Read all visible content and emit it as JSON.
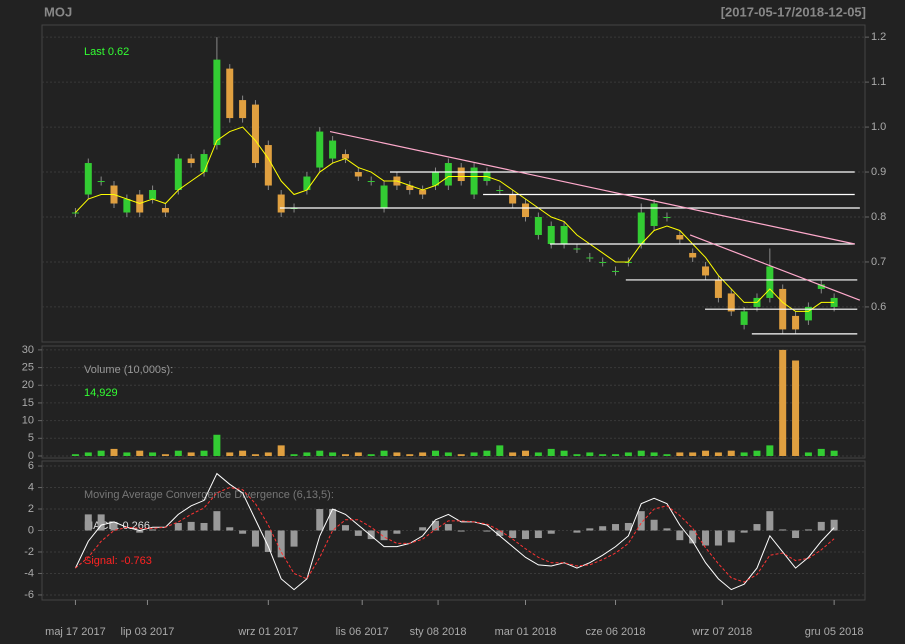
{
  "chart_data": [
    {
      "type": "candlestick",
      "title": "MOJ",
      "subtitle": "[2017-05-17/2018-12-05]",
      "annotation": "Last 0.62",
      "open": [
        0.81,
        0.85,
        0.88,
        0.87,
        0.81,
        0.85,
        0.84,
        0.82,
        0.86,
        0.93,
        0.9,
        0.96,
        1.13,
        1.06,
        1.05,
        0.96,
        0.85,
        0.82,
        0.86,
        0.91,
        0.93,
        0.94,
        0.9,
        0.88,
        0.82,
        0.89,
        0.87,
        0.86,
        0.87,
        0.87,
        0.91,
        0.85,
        0.88,
        0.86,
        0.85,
        0.83,
        0.76,
        0.74,
        0.74,
        0.73,
        0.71,
        0.7,
        0.68,
        0.7,
        0.74,
        0.78,
        0.8,
        0.76,
        0.72,
        0.69,
        0.66,
        0.63,
        0.56,
        0.6,
        0.62,
        0.64,
        0.58,
        0.57,
        0.64,
        0.6
      ],
      "high": [
        0.82,
        0.93,
        0.89,
        0.88,
        0.85,
        0.86,
        0.87,
        0.83,
        0.94,
        0.94,
        0.95,
        1.2,
        1.14,
        1.07,
        1.06,
        0.97,
        0.86,
        0.83,
        0.9,
        1.0,
        0.98,
        0.95,
        0.91,
        0.89,
        0.88,
        0.9,
        0.88,
        0.87,
        0.91,
        0.93,
        0.92,
        0.92,
        0.91,
        0.87,
        0.86,
        0.84,
        0.81,
        0.79,
        0.79,
        0.74,
        0.72,
        0.71,
        0.69,
        0.71,
        0.83,
        0.84,
        0.81,
        0.77,
        0.73,
        0.7,
        0.67,
        0.64,
        0.6,
        0.63,
        0.73,
        0.65,
        0.59,
        0.61,
        0.66,
        0.63
      ],
      "low": [
        0.8,
        0.84,
        0.87,
        0.82,
        0.8,
        0.8,
        0.83,
        0.8,
        0.85,
        0.91,
        0.89,
        0.95,
        1.01,
        1.01,
        0.91,
        0.86,
        0.8,
        0.81,
        0.85,
        0.9,
        0.92,
        0.92,
        0.88,
        0.87,
        0.81,
        0.86,
        0.85,
        0.84,
        0.86,
        0.86,
        0.87,
        0.84,
        0.87,
        0.85,
        0.82,
        0.79,
        0.75,
        0.73,
        0.73,
        0.72,
        0.7,
        0.69,
        0.67,
        0.69,
        0.73,
        0.77,
        0.79,
        0.74,
        0.7,
        0.66,
        0.61,
        0.58,
        0.55,
        0.59,
        0.61,
        0.54,
        0.54,
        0.56,
        0.63,
        0.59
      ],
      "close": [
        0.81,
        0.92,
        0.88,
        0.83,
        0.84,
        0.81,
        0.86,
        0.81,
        0.93,
        0.92,
        0.94,
        1.15,
        1.02,
        1.02,
        0.92,
        0.87,
        0.81,
        0.82,
        0.89,
        0.99,
        0.97,
        0.93,
        0.89,
        0.88,
        0.87,
        0.87,
        0.86,
        0.85,
        0.9,
        0.92,
        0.88,
        0.91,
        0.9,
        0.86,
        0.83,
        0.8,
        0.8,
        0.78,
        0.78,
        0.73,
        0.71,
        0.7,
        0.68,
        0.7,
        0.81,
        0.83,
        0.8,
        0.75,
        0.71,
        0.67,
        0.62,
        0.59,
        0.59,
        0.62,
        0.69,
        0.55,
        0.55,
        0.6,
        0.65,
        0.62
      ],
      "up_color": "#33cc33",
      "down_color": "#e0a040",
      "ma": {
        "color": "#ffff00",
        "values": [
          0.81,
          0.84,
          0.85,
          0.85,
          0.84,
          0.83,
          0.84,
          0.83,
          0.86,
          0.88,
          0.9,
          0.97,
          0.99,
          1.0,
          0.97,
          0.93,
          0.88,
          0.85,
          0.86,
          0.9,
          0.92,
          0.93,
          0.91,
          0.9,
          0.88,
          0.88,
          0.87,
          0.86,
          0.87,
          0.89,
          0.89,
          0.89,
          0.89,
          0.88,
          0.86,
          0.84,
          0.82,
          0.8,
          0.79,
          0.76,
          0.74,
          0.72,
          0.7,
          0.7,
          0.74,
          0.77,
          0.78,
          0.77,
          0.74,
          0.71,
          0.67,
          0.64,
          0.61,
          0.61,
          0.64,
          0.61,
          0.59,
          0.59,
          0.61,
          0.61
        ]
      },
      "lines": [
        {
          "x": [
            24.46,
            60.6
          ],
          "y": [
            0.9,
            0.9
          ],
          "color": "#ffffff"
        },
        {
          "x": [
            31.7,
            60.6
          ],
          "y": [
            0.85,
            0.85
          ],
          "color": "#ffffff"
        },
        {
          "x": [
            15.9,
            61
          ],
          "y": [
            0.82,
            0.82
          ],
          "color": "#ffffff"
        },
        {
          "x": [
            36.9,
            60.6
          ],
          "y": [
            0.74,
            0.74
          ],
          "color": "#ffffff"
        },
        {
          "x": [
            42.8,
            60.8
          ],
          "y": [
            0.66,
            0.66
          ],
          "color": "#ffffff"
        },
        {
          "x": [
            48.96,
            60.8
          ],
          "y": [
            0.595,
            0.595
          ],
          "color": "#ffffff"
        },
        {
          "x": [
            52.6,
            60.8
          ],
          "y": [
            0.54,
            0.54
          ],
          "color": "#ffffff"
        },
        {
          "x": [
            19.8,
            60.6
          ],
          "y": [
            0.99,
            0.74
          ],
          "color": "#ffaacc"
        },
        {
          "x": [
            47.8,
            61
          ],
          "y": [
            0.76,
            0.615
          ],
          "color": "#ffaacc"
        }
      ],
      "xlim": [
        -2.6,
        61.4
      ],
      "ylim": [
        0.522,
        1.227
      ],
      "yticks": [
        0.6,
        0.7,
        0.8,
        0.9,
        {
          "value": 1,
          "label": "1.0"
        },
        1.1,
        1.2
      ],
      "grid": true
    },
    {
      "type": "bar",
      "title": "Volume (10,000s):",
      "annotation": "14,929",
      "values": [
        0.5,
        1,
        1.5,
        2,
        1,
        1.5,
        1,
        0.5,
        1.5,
        1,
        1.5,
        6,
        1,
        1.5,
        0.5,
        1,
        3,
        0.5,
        1,
        1.5,
        1,
        0.5,
        1,
        0.5,
        1.5,
        1,
        0.5,
        1,
        1.5,
        1,
        0.5,
        1,
        1.5,
        3,
        1,
        1.5,
        1,
        2,
        1.5,
        0.5,
        1,
        0.5,
        0.5,
        1,
        1.5,
        1,
        0.5,
        1,
        1,
        1.5,
        1,
        1.5,
        1,
        1.5,
        3,
        30,
        27,
        1,
        2,
        1.5
      ],
      "xlim": [
        -2.6,
        61.4
      ],
      "ylim": [
        -0.57,
        31.1
      ],
      "yticks": [
        0,
        5,
        10,
        15,
        20,
        25,
        30
      ],
      "grid": true
    },
    {
      "type": "line",
      "title": "Moving Average Convergence Divergence (6,13,5):",
      "series": [
        {
          "name": "MACD: 0.266",
          "color": "#ffffff",
          "values": [
            -3.5,
            -1,
            0.5,
            0.8,
            0.3,
            0,
            0.3,
            0.3,
            1.5,
            2.3,
            2.8,
            5.3,
            4.3,
            3.5,
            1,
            -1.5,
            -4.5,
            -5.5,
            -4.5,
            -0.5,
            2,
            1.5,
            0.5,
            -0.5,
            -1.5,
            -1.5,
            -1.2,
            -0.5,
            1,
            1.5,
            0.8,
            0.8,
            0.5,
            -0.5,
            -1.5,
            -2.5,
            -3.2,
            -3.3,
            -3,
            -3.5,
            -3,
            -2.3,
            -1.5,
            -0.5,
            2.5,
            3,
            2.5,
            0.5,
            -1,
            -3,
            -4.5,
            -5.5,
            -5,
            -3.5,
            -0.5,
            -2,
            -3.5,
            -2.5,
            -1,
            0.266
          ]
        },
        {
          "name": "Signal: -0.763",
          "color": "#ff3333",
          "dashed": true,
          "values": [
            -3.5,
            -2.5,
            -1,
            0,
            0.3,
            0.2,
            0.2,
            0.3,
            0.8,
            1.5,
            2.1,
            3.5,
            4,
            3.8,
            2.5,
            0.5,
            -2,
            -4,
            -4.5,
            -2.5,
            0,
            1,
            1,
            0.3,
            -0.6,
            -1.2,
            -1.2,
            -0.8,
            0.1,
            0.9,
            0.9,
            0.8,
            0.6,
            0,
            -0.8,
            -1.7,
            -2.5,
            -3,
            -3,
            -3.3,
            -3.2,
            -2.7,
            -2.1,
            -1.2,
            0.7,
            2,
            2.3,
            1.4,
            0.2,
            -1.6,
            -3.1,
            -4.4,
            -4.8,
            -4.1,
            -2.3,
            -2.1,
            -2.8,
            -2.6,
            -1.8,
            -0.763
          ]
        }
      ],
      "histogram": {
        "color": "#999999",
        "values": [
          0,
          1.5,
          1.5,
          0.8,
          0,
          -0.2,
          0.1,
          0,
          0.7,
          0.8,
          0.7,
          1.8,
          0.3,
          -0.3,
          -1.5,
          -2,
          -2.5,
          -1.5,
          0,
          2,
          2,
          0.5,
          -0.5,
          -0.8,
          -0.9,
          -0.3,
          0,
          0.3,
          0.9,
          0.6,
          -0.1,
          0,
          -0.1,
          -0.5,
          -0.7,
          -0.8,
          -0.7,
          -0.3,
          0,
          -0.2,
          0.2,
          0.4,
          0.6,
          0.7,
          1.8,
          1,
          0.2,
          -0.9,
          -1.2,
          -1.4,
          -1.4,
          -1.1,
          -0.2,
          0.6,
          1.8,
          0.1,
          -0.7,
          0.1,
          0.8,
          1.0
        ]
      },
      "xlim": [
        -2.6,
        61.4
      ],
      "ylim": [
        -6.47,
        6.47
      ],
      "yticks": [
        -6,
        -4,
        -2,
        0,
        2,
        4,
        6
      ],
      "grid": true,
      "xticks": [
        {
          "value": 0,
          "label": "maj 17 2017"
        },
        {
          "value": 5.6,
          "label": "lip 03 2017"
        },
        {
          "value": 15,
          "label": "wrz 01 2017"
        },
        {
          "value": 22.3,
          "label": "lis 06 2017"
        },
        {
          "value": 28.2,
          "label": "sty 08 2018"
        },
        {
          "value": 35,
          "label": "mar 01 2018"
        },
        {
          "value": 42,
          "label": "cze 06 2018"
        },
        {
          "value": 50.3,
          "label": "wrz 07 2018"
        },
        {
          "value": 59,
          "label": "gru 05 2018"
        }
      ]
    }
  ]
}
